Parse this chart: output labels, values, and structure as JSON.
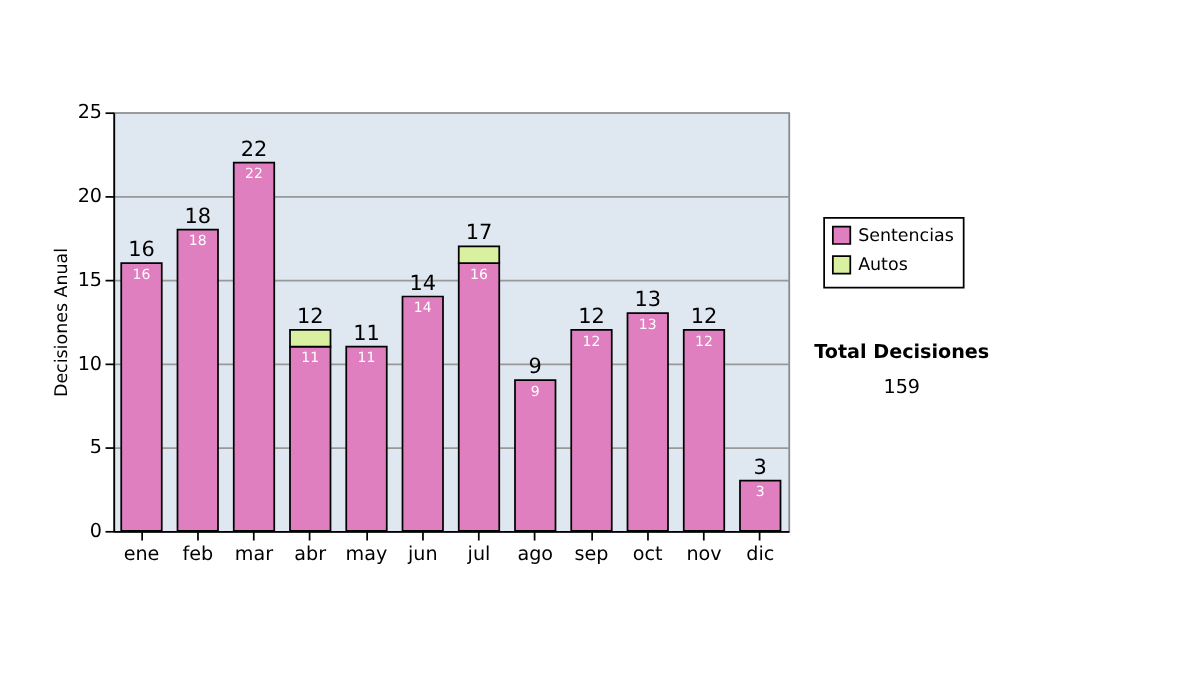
{
  "chart_data": {
    "type": "bar",
    "stacked": true,
    "ylabel": "Decisiones Anual",
    "categories": [
      "ene",
      "feb",
      "mar",
      "abr",
      "may",
      "jun",
      "jul",
      "ago",
      "sep",
      "oct",
      "nov",
      "dic"
    ],
    "series": [
      {
        "name": "Sentencias",
        "color": "#e07fc0",
        "values": [
          16,
          18,
          22,
          11,
          11,
          14,
          16,
          9,
          12,
          13,
          12,
          3
        ],
        "value_labels": [
          "16",
          "18",
          "22",
          "11",
          "11",
          "14",
          "16",
          "9",
          "12",
          "13",
          "12",
          "3"
        ]
      },
      {
        "name": "Autos",
        "color": "#d8f0a0",
        "values": [
          null,
          null,
          null,
          1,
          null,
          null,
          1,
          null,
          null,
          null,
          null,
          null
        ]
      }
    ],
    "totals": [
      "16",
      "18",
      "22",
      "12",
      "11",
      "14",
      "17",
      "9",
      "12",
      "13",
      "12",
      "3"
    ],
    "ylim": [
      0,
      25
    ],
    "yticks": [
      0,
      5,
      10,
      15,
      20,
      25
    ],
    "grid": "y",
    "legend": "right",
    "annotations": [
      "Total Decisiones",
      "159"
    ]
  }
}
